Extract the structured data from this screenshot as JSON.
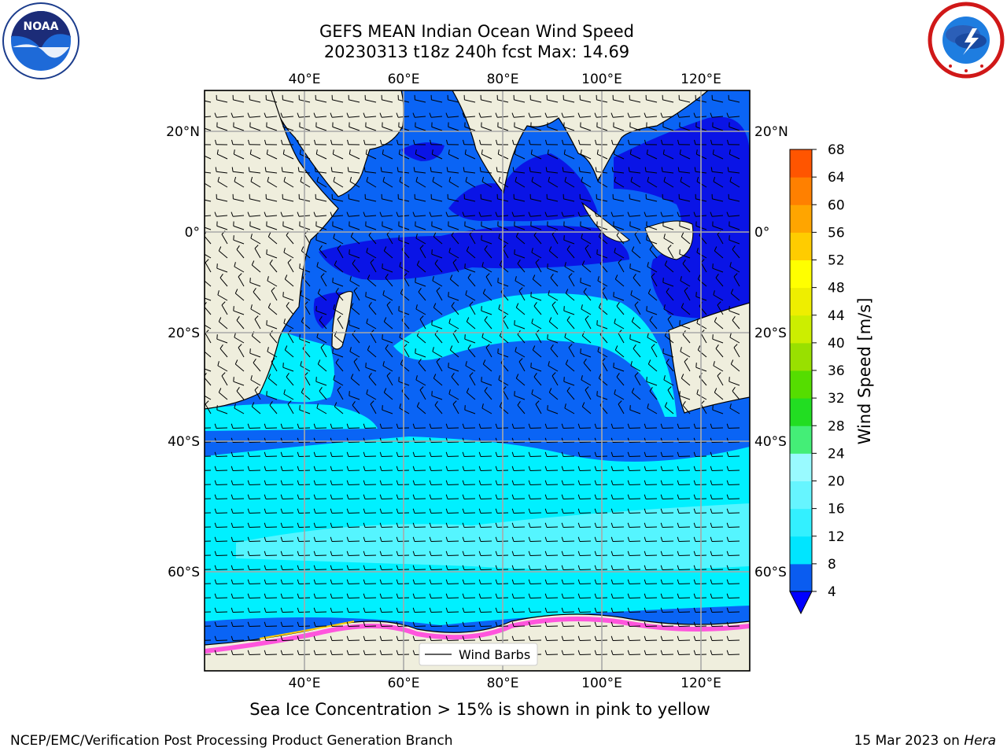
{
  "title_line1": "GEFS MEAN Indian Ocean Wind Speed",
  "title_line2": "20230313 t18z 240h fcst   Max: 14.69",
  "lon_labels": [
    "40°E",
    "60°E",
    "80°E",
    "100°E",
    "120°E"
  ],
  "lat_labels": [
    "20°N",
    "0°",
    "20°S",
    "40°S",
    "60°S"
  ],
  "colorbar": {
    "label": "Wind Speed [m/s]",
    "ticks": [
      "4",
      "8",
      "12",
      "16",
      "20",
      "24",
      "28",
      "32",
      "36",
      "40",
      "44",
      "48",
      "52",
      "56",
      "60",
      "64",
      "68"
    ],
    "colors": [
      "#0a5cf0",
      "#00e5ff",
      "#33f0ff",
      "#66f5ff",
      "#99faff",
      "#44ee77",
      "#22dd22",
      "#55dd00",
      "#99e000",
      "#ccee00",
      "#eeee00",
      "#ffff00",
      "#ffcc00",
      "#ffa500",
      "#ff8000",
      "#ff5500",
      "#ff2a00",
      "#ff0000"
    ],
    "extend_color": "#0000ff"
  },
  "legend_label": "Wind Barbs",
  "caption": "Sea Ice Concentration > 15% is shown in pink to yellow",
  "footer_left": "NCEP/EMC/Verification Post Processing Product Generation Branch",
  "footer_right_date": "15 Mar 2023 on ",
  "footer_right_host": "Hera",
  "noaa_logo_text": "NOAA",
  "colors": {
    "land": "#efeedd",
    "band_deep": "#0a14e6",
    "band_blue": "#0a64f5",
    "band_cyan": "#00f0ff",
    "band_light": "#55f5ff",
    "ice_pink": "#ff55dd"
  }
}
